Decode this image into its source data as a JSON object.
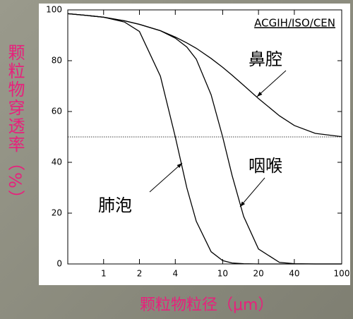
{
  "chart_data": {
    "type": "line",
    "xlabel": "颗粒物粒径（μm）",
    "ylabel": "颗粒物穿透率（%）",
    "source": "ACGIH/ISO/CEN",
    "x": [
      0.5,
      0.7,
      1,
      1.5,
      2,
      3,
      4,
      5,
      6,
      8,
      10,
      12,
      15,
      20,
      30,
      40,
      60,
      100
    ],
    "series": [
      {
        "name": "鼻腔",
        "color": "#000000",
        "values": [
          98.5,
          97.9,
          97.1,
          95.7,
          94.3,
          91.8,
          89.3,
          87.0,
          84.9,
          80.9,
          77.4,
          74.3,
          70.3,
          65.1,
          58.3,
          54.5,
          51.4,
          50.1
        ]
      },
      {
        "name": "咽喉",
        "color": "#000000",
        "values": [
          98.5,
          97.9,
          97.1,
          95.7,
          94.3,
          91.8,
          88.9,
          85.4,
          80.6,
          66.6,
          50.0,
          34.9,
          18.7,
          5.9,
          0.6,
          0.1,
          0,
          0
        ]
      },
      {
        "name": "肺泡",
        "color": "#000000",
        "values": [
          98.5,
          97.9,
          97.1,
          95.2,
          91.5,
          73.9,
          50.0,
          30.0,
          16.8,
          4.8,
          1.3,
          0.4,
          0.1,
          0,
          0,
          0,
          0,
          0
        ]
      }
    ],
    "reference_line": 50,
    "xscale": "log",
    "xlim": [
      0.5,
      100
    ],
    "xticks": [
      1,
      2,
      4,
      10,
      20,
      40,
      100
    ],
    "ylim": [
      0,
      100
    ],
    "yticks": [
      0,
      20,
      40,
      60,
      80,
      100
    ]
  }
}
